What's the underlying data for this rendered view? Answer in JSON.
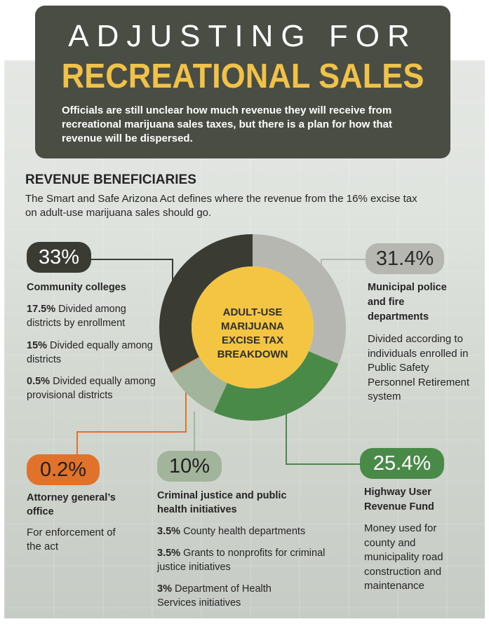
{
  "header": {
    "title_line1": "ADJUSTING FOR",
    "title_line2": "RECREATIONAL SALES",
    "subtitle": "Officials are still unclear how much revenue they will receive from recreational marijuana sales taxes, but there is a plan for how that revenue will be dispersed."
  },
  "section": {
    "title": "REVENUE BENEFICIARIES",
    "text": "The Smart and Safe Arizona Act defines where the revenue from the 16% excise tax on adult-use marijuana sales should go."
  },
  "center_label": "ADULT-USE MARIJUANA EXCISE TAX BREAKDOWN",
  "beneficiaries": {
    "community_colleges": {
      "pct": "33%",
      "name": "Community colleges",
      "details": [
        {
          "bold": "17.5%",
          "text": " Divided among districts by enrollment"
        },
        {
          "bold": "15%",
          "text": " Divided equally among districts"
        },
        {
          "bold": "0.5%",
          "text": " Divided equally among provisional districts"
        }
      ]
    },
    "police_fire": {
      "pct": "31.4%",
      "name": "Municipal police and fire departments",
      "desc": "Divided according to individuals enrolled in Public Safety Personnel Retirement system"
    },
    "attorney_general": {
      "pct": "0.2%",
      "name": "Attorney general’s office",
      "desc": "For enforcement of the act"
    },
    "criminal_justice": {
      "pct": "10%",
      "name": "Criminal justice and public health initiatives",
      "details": [
        {
          "bold": "3.5%",
          "text": " County health departments"
        },
        {
          "bold": "3.5%",
          "text": " Grants to nonprofits for criminal justice initiatives"
        },
        {
          "bold": "3%",
          "text": " Department of Health Services initiatives"
        }
      ]
    },
    "highway": {
      "pct": "25.4%",
      "name": "Highway User Revenue Fund",
      "desc": "Money used for county and municipality road construction and maintenance"
    }
  },
  "chart_data": {
    "type": "pie",
    "title": "ADULT-USE MARIJUANA EXCISE TAX BREAKDOWN",
    "categories": [
      "Municipal police and fire departments",
      "Highway User Revenue Fund",
      "Criminal justice and public health initiatives",
      "Attorney general’s office",
      "Community colleges"
    ],
    "values": [
      31.4,
      25.4,
      10,
      0.2,
      33
    ],
    "colors": [
      "#b6b7b1",
      "#4a8a49",
      "#a3b49c",
      "#e0722c",
      "#3a3c33"
    ],
    "center_color": "#f4c542",
    "start_angle_deg": 0,
    "direction": "clockwise"
  },
  "colors": {
    "header_bg": "#4a4d43",
    "title_accent": "#f1c24a",
    "pill_dark": "#3a3c33",
    "pill_gray": "#b6b7b1",
    "pill_orange": "#e0722c",
    "pill_lightgreen": "#a3b49c",
    "pill_green": "#4a8a49"
  }
}
